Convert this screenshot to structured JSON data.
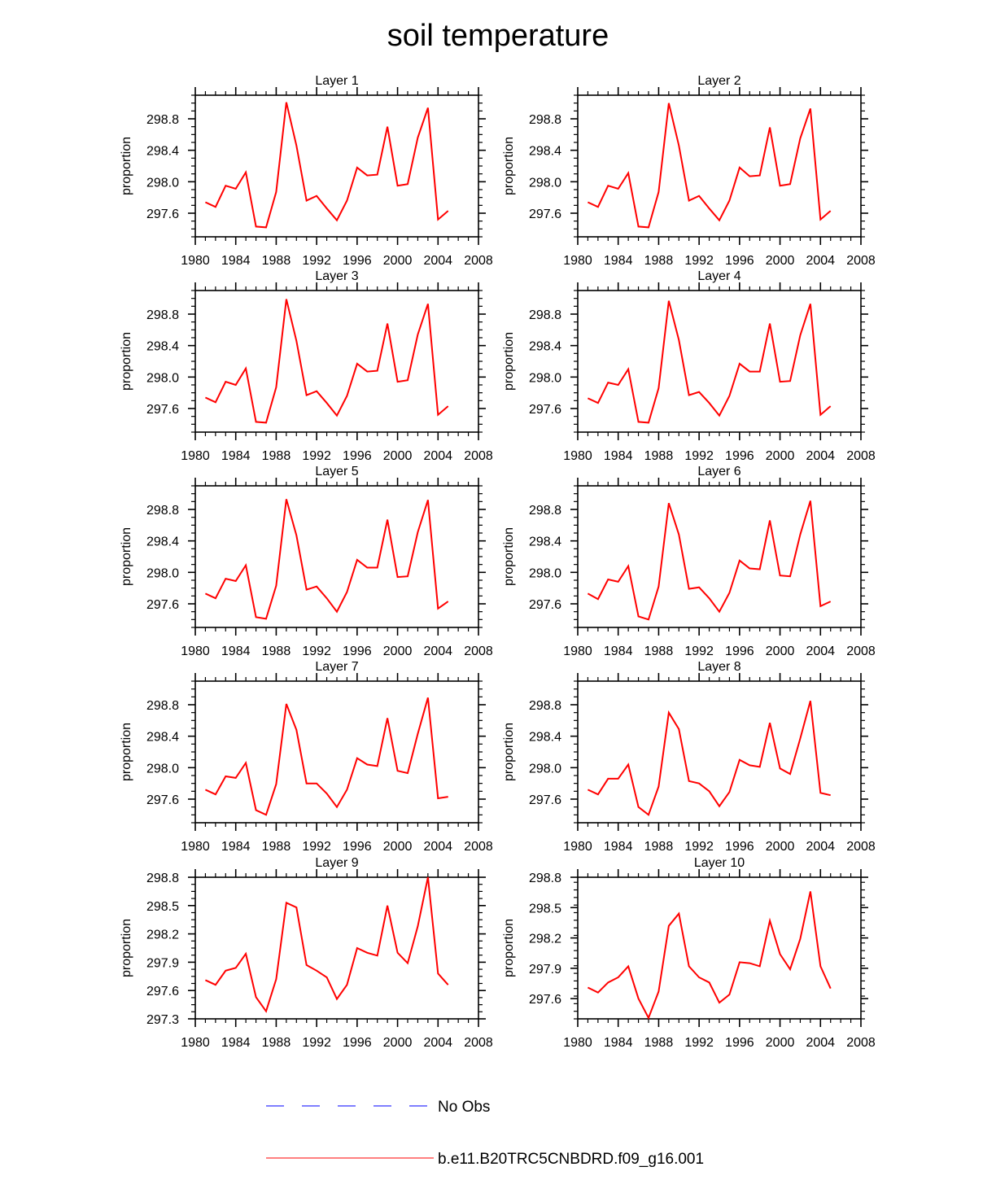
{
  "title": "soil temperature",
  "legend": {
    "items": [
      {
        "label": "No Obs",
        "color": "#0000ff",
        "style": "dashed"
      },
      {
        "label": "b.e11.B20TRC5CNBDRD.f09_g16.001",
        "color": "#ff0000",
        "style": "solid"
      }
    ]
  },
  "chart_data": [
    {
      "type": "line",
      "title": "Layer 1",
      "ylabel": "proportion",
      "xlabel": "",
      "xlim": [
        1980,
        2008
      ],
      "xticks": [
        1980,
        1984,
        1988,
        1992,
        1996,
        2000,
        2004,
        2008
      ],
      "xtick_labels": [
        "1980",
        "1984",
        "1988",
        "1992",
        "1996",
        "2000",
        "2004",
        "2008"
      ],
      "ylim": [
        297.3,
        299.1
      ],
      "yticks": [
        297.6,
        298.0,
        298.4,
        298.8
      ],
      "ytick_labels": [
        "297.6",
        "298.0",
        "298.4",
        "298.8"
      ],
      "x": [
        1981,
        1982,
        1983,
        1984,
        1985,
        1986,
        1987,
        1988,
        1989,
        1990,
        1991,
        1992,
        1993,
        1994,
        1995,
        1996,
        1997,
        1998,
        1999,
        2000,
        2001,
        2002,
        2003,
        2004,
        2005
      ],
      "series": [
        {
          "name": "b.e11.B20TRC5CNBDRD.f09_g16.001",
          "color": "#ff0000",
          "values": [
            297.74,
            297.68,
            297.95,
            297.91,
            298.12,
            297.43,
            297.42,
            297.87,
            299.01,
            298.46,
            297.76,
            297.82,
            297.66,
            297.51,
            297.76,
            298.18,
            298.08,
            298.09,
            298.7,
            297.95,
            297.97,
            298.56,
            298.94,
            297.52,
            297.63
          ]
        }
      ]
    },
    {
      "type": "line",
      "title": "Layer 2",
      "ylabel": "proportion",
      "xlabel": "",
      "xlim": [
        1980,
        2008
      ],
      "xticks": [
        1980,
        1984,
        1988,
        1992,
        1996,
        2000,
        2004,
        2008
      ],
      "xtick_labels": [
        "1980",
        "1984",
        "1988",
        "1992",
        "1996",
        "2000",
        "2004",
        "2008"
      ],
      "ylim": [
        297.3,
        299.1
      ],
      "yticks": [
        297.6,
        298.0,
        298.4,
        298.8
      ],
      "ytick_labels": [
        "297.6",
        "298.0",
        "298.4",
        "298.8"
      ],
      "x": [
        1981,
        1982,
        1983,
        1984,
        1985,
        1986,
        1987,
        1988,
        1989,
        1990,
        1991,
        1992,
        1993,
        1994,
        1995,
        1996,
        1997,
        1998,
        1999,
        2000,
        2001,
        2002,
        2003,
        2004,
        2005
      ],
      "series": [
        {
          "name": "b.e11.B20TRC5CNBDRD.f09_g16.001",
          "color": "#ff0000",
          "values": [
            297.74,
            297.68,
            297.95,
            297.91,
            298.11,
            297.43,
            297.42,
            297.87,
            299.0,
            298.46,
            297.76,
            297.82,
            297.66,
            297.51,
            297.76,
            298.18,
            298.07,
            298.08,
            298.69,
            297.95,
            297.97,
            298.55,
            298.93,
            297.52,
            297.63
          ]
        }
      ]
    },
    {
      "type": "line",
      "title": "Layer 3",
      "ylabel": "proportion",
      "xlabel": "",
      "xlim": [
        1980,
        2008
      ],
      "xticks": [
        1980,
        1984,
        1988,
        1992,
        1996,
        2000,
        2004,
        2008
      ],
      "xtick_labels": [
        "1980",
        "1984",
        "1988",
        "1992",
        "1996",
        "2000",
        "2004",
        "2008"
      ],
      "ylim": [
        297.3,
        299.1
      ],
      "yticks": [
        297.6,
        298.0,
        298.4,
        298.8
      ],
      "ytick_labels": [
        "297.6",
        "298.0",
        "298.4",
        "298.8"
      ],
      "x": [
        1981,
        1982,
        1983,
        1984,
        1985,
        1986,
        1987,
        1988,
        1989,
        1990,
        1991,
        1992,
        1993,
        1994,
        1995,
        1996,
        1997,
        1998,
        1999,
        2000,
        2001,
        2002,
        2003,
        2004,
        2005
      ],
      "series": [
        {
          "name": "b.e11.B20TRC5CNBDRD.f09_g16.001",
          "color": "#ff0000",
          "values": [
            297.74,
            297.68,
            297.94,
            297.9,
            298.11,
            297.43,
            297.42,
            297.87,
            298.99,
            298.46,
            297.77,
            297.82,
            297.67,
            297.51,
            297.76,
            298.17,
            298.07,
            298.08,
            298.68,
            297.94,
            297.96,
            298.54,
            298.93,
            297.52,
            297.63
          ]
        }
      ]
    },
    {
      "type": "line",
      "title": "Layer 4",
      "ylabel": "proportion",
      "xlabel": "",
      "xlim": [
        1980,
        2008
      ],
      "xticks": [
        1980,
        1984,
        1988,
        1992,
        1996,
        2000,
        2004,
        2008
      ],
      "xtick_labels": [
        "1980",
        "1984",
        "1988",
        "1992",
        "1996",
        "2000",
        "2004",
        "2008"
      ],
      "ylim": [
        297.3,
        299.1
      ],
      "yticks": [
        297.6,
        298.0,
        298.4,
        298.8
      ],
      "ytick_labels": [
        "297.6",
        "298.0",
        "298.4",
        "298.8"
      ],
      "x": [
        1981,
        1982,
        1983,
        1984,
        1985,
        1986,
        1987,
        1988,
        1989,
        1990,
        1991,
        1992,
        1993,
        1994,
        1995,
        1996,
        1997,
        1998,
        1999,
        2000,
        2001,
        2002,
        2003,
        2004,
        2005
      ],
      "series": [
        {
          "name": "b.e11.B20TRC5CNBDRD.f09_g16.001",
          "color": "#ff0000",
          "values": [
            297.73,
            297.67,
            297.93,
            297.9,
            298.1,
            297.43,
            297.42,
            297.86,
            298.97,
            298.47,
            297.77,
            297.81,
            297.67,
            297.51,
            297.76,
            298.17,
            298.07,
            298.07,
            298.68,
            297.94,
            297.95,
            298.53,
            298.93,
            297.52,
            297.63
          ]
        }
      ]
    },
    {
      "type": "line",
      "title": "Layer 5",
      "ylabel": "proportion",
      "xlabel": "",
      "xlim": [
        1980,
        2008
      ],
      "xticks": [
        1980,
        1984,
        1988,
        1992,
        1996,
        2000,
        2004,
        2008
      ],
      "xtick_labels": [
        "1980",
        "1984",
        "1988",
        "1992",
        "1996",
        "2000",
        "2004",
        "2008"
      ],
      "ylim": [
        297.3,
        299.1
      ],
      "yticks": [
        297.6,
        298.0,
        298.4,
        298.8
      ],
      "ytick_labels": [
        "297.6",
        "298.0",
        "298.4",
        "298.8"
      ],
      "x": [
        1981,
        1982,
        1983,
        1984,
        1985,
        1986,
        1987,
        1988,
        1989,
        1990,
        1991,
        1992,
        1993,
        1994,
        1995,
        1996,
        1997,
        1998,
        1999,
        2000,
        2001,
        2002,
        2003,
        2004,
        2005
      ],
      "series": [
        {
          "name": "b.e11.B20TRC5CNBDRD.f09_g16.001",
          "color": "#ff0000",
          "values": [
            297.73,
            297.67,
            297.92,
            297.89,
            298.09,
            297.43,
            297.41,
            297.83,
            298.93,
            298.47,
            297.78,
            297.82,
            297.67,
            297.5,
            297.75,
            298.16,
            298.06,
            298.06,
            298.67,
            297.94,
            297.95,
            298.51,
            298.92,
            297.54,
            297.63
          ]
        }
      ]
    },
    {
      "type": "line",
      "title": "Layer 6",
      "ylabel": "proportion",
      "xlabel": "",
      "xlim": [
        1980,
        2008
      ],
      "xticks": [
        1980,
        1984,
        1988,
        1992,
        1996,
        2000,
        2004,
        2008
      ],
      "xtick_labels": [
        "1980",
        "1984",
        "1988",
        "1992",
        "1996",
        "2000",
        "2004",
        "2008"
      ],
      "ylim": [
        297.3,
        299.1
      ],
      "yticks": [
        297.6,
        298.0,
        298.4,
        298.8
      ],
      "ytick_labels": [
        "297.6",
        "298.0",
        "298.4",
        "298.8"
      ],
      "x": [
        1981,
        1982,
        1983,
        1984,
        1985,
        1986,
        1987,
        1988,
        1989,
        1990,
        1991,
        1992,
        1993,
        1994,
        1995,
        1996,
        1997,
        1998,
        1999,
        2000,
        2001,
        2002,
        2003,
        2004,
        2005
      ],
      "series": [
        {
          "name": "b.e11.B20TRC5CNBDRD.f09_g16.001",
          "color": "#ff0000",
          "values": [
            297.73,
            297.66,
            297.91,
            297.88,
            298.08,
            297.44,
            297.4,
            297.82,
            298.88,
            298.48,
            297.79,
            297.81,
            297.67,
            297.5,
            297.74,
            298.15,
            298.05,
            298.04,
            298.66,
            297.96,
            297.95,
            298.48,
            298.91,
            297.57,
            297.63
          ]
        }
      ]
    },
    {
      "type": "line",
      "title": "Layer 7",
      "ylabel": "proportion",
      "xlabel": "",
      "xlim": [
        1980,
        2008
      ],
      "xticks": [
        1980,
        1984,
        1988,
        1992,
        1996,
        2000,
        2004,
        2008
      ],
      "xtick_labels": [
        "1980",
        "1984",
        "1988",
        "1992",
        "1996",
        "2000",
        "2004",
        "2008"
      ],
      "ylim": [
        297.3,
        299.1
      ],
      "yticks": [
        297.6,
        298.0,
        298.4,
        298.8
      ],
      "ytick_labels": [
        "297.6",
        "298.0",
        "298.4",
        "298.8"
      ],
      "x": [
        1981,
        1982,
        1983,
        1984,
        1985,
        1986,
        1987,
        1988,
        1989,
        1990,
        1991,
        1992,
        1993,
        1994,
        1995,
        1996,
        1997,
        1998,
        1999,
        2000,
        2001,
        2002,
        2003,
        2004,
        2005
      ],
      "series": [
        {
          "name": "b.e11.B20TRC5CNBDRD.f09_g16.001",
          "color": "#ff0000",
          "values": [
            297.72,
            297.66,
            297.89,
            297.87,
            298.06,
            297.46,
            297.4,
            297.79,
            298.81,
            298.48,
            297.8,
            297.8,
            297.67,
            297.5,
            297.72,
            298.12,
            298.04,
            298.02,
            298.63,
            297.96,
            297.93,
            298.43,
            298.89,
            297.61,
            297.63
          ]
        }
      ]
    },
    {
      "type": "line",
      "title": "Layer 8",
      "ylabel": "proportion",
      "xlabel": "",
      "xlim": [
        1980,
        2008
      ],
      "xticks": [
        1980,
        1984,
        1988,
        1992,
        1996,
        2000,
        2004,
        2008
      ],
      "xtick_labels": [
        "1980",
        "1984",
        "1988",
        "1992",
        "1996",
        "2000",
        "2004",
        "2008"
      ],
      "ylim": [
        297.3,
        299.1
      ],
      "yticks": [
        297.6,
        298.0,
        298.4,
        298.8
      ],
      "ytick_labels": [
        "297.6",
        "298.0",
        "298.4",
        "298.8"
      ],
      "x": [
        1981,
        1982,
        1983,
        1984,
        1985,
        1986,
        1987,
        1988,
        1989,
        1990,
        1991,
        1992,
        1993,
        1994,
        1995,
        1996,
        1997,
        1998,
        1999,
        2000,
        2001,
        2002,
        2003,
        2004,
        2005
      ],
      "series": [
        {
          "name": "b.e11.B20TRC5CNBDRD.f09_g16.001",
          "color": "#ff0000",
          "values": [
            297.72,
            297.66,
            297.86,
            297.86,
            298.04,
            297.5,
            297.4,
            297.76,
            298.7,
            298.49,
            297.83,
            297.8,
            297.7,
            297.51,
            297.69,
            298.1,
            298.03,
            298.01,
            298.57,
            297.99,
            297.92,
            298.37,
            298.85,
            297.68,
            297.65
          ]
        }
      ]
    },
    {
      "type": "line",
      "title": "Layer 9",
      "ylabel": "proportion",
      "xlabel": "",
      "xlim": [
        1980,
        2008
      ],
      "xticks": [
        1980,
        1984,
        1988,
        1992,
        1996,
        2000,
        2004,
        2008
      ],
      "xtick_labels": [
        "1980",
        "1984",
        "1988",
        "1992",
        "1996",
        "2000",
        "2004",
        "2008"
      ],
      "ylim": [
        297.3,
        298.8
      ],
      "yticks": [
        297.3,
        297.6,
        297.9,
        298.2,
        298.5,
        298.8
      ],
      "ytick_labels": [
        "297.3",
        "297.6",
        "297.9",
        "298.2",
        "298.5",
        "298.8"
      ],
      "x": [
        1981,
        1982,
        1983,
        1984,
        1985,
        1986,
        1987,
        1988,
        1989,
        1990,
        1991,
        1992,
        1993,
        1994,
        1995,
        1996,
        1997,
        1998,
        1999,
        2000,
        2001,
        2002,
        2003,
        2004,
        2005
      ],
      "series": [
        {
          "name": "b.e11.B20TRC5CNBDRD.f09_g16.001",
          "color": "#ff0000",
          "values": [
            297.71,
            297.66,
            297.81,
            297.84,
            297.99,
            297.53,
            297.38,
            297.72,
            298.53,
            298.48,
            297.87,
            297.81,
            297.74,
            297.51,
            297.66,
            298.05,
            298.0,
            297.97,
            298.5,
            298.0,
            297.89,
            298.28,
            298.8,
            297.78,
            297.66
          ]
        }
      ]
    },
    {
      "type": "line",
      "title": "Layer 10",
      "ylabel": "proportion",
      "xlabel": "",
      "xlim": [
        1980,
        2008
      ],
      "xticks": [
        1980,
        1984,
        1988,
        1992,
        1996,
        2000,
        2004,
        2008
      ],
      "xtick_labels": [
        "1980",
        "1984",
        "1988",
        "1992",
        "1996",
        "2000",
        "2004",
        "2008"
      ],
      "ylim": [
        297.4,
        298.8
      ],
      "yticks": [
        297.6,
        297.9,
        298.2,
        298.5,
        298.8
      ],
      "ytick_labels": [
        "297.6",
        "297.9",
        "298.2",
        "298.5",
        "298.8"
      ],
      "x": [
        1981,
        1982,
        1983,
        1984,
        1985,
        1986,
        1987,
        1988,
        1989,
        1990,
        1991,
        1992,
        1993,
        1994,
        1995,
        1996,
        1997,
        1998,
        1999,
        2000,
        2001,
        2002,
        2003,
        2004,
        2005
      ],
      "series": [
        {
          "name": "b.e11.B20TRC5CNBDRD.f09_g16.001",
          "color": "#ff0000",
          "values": [
            297.71,
            297.66,
            297.76,
            297.81,
            297.92,
            297.6,
            297.41,
            297.67,
            298.32,
            298.44,
            297.92,
            297.81,
            297.76,
            297.56,
            297.64,
            297.96,
            297.95,
            297.92,
            298.37,
            298.04,
            297.89,
            298.19,
            298.66,
            297.92,
            297.7
          ]
        }
      ]
    }
  ]
}
